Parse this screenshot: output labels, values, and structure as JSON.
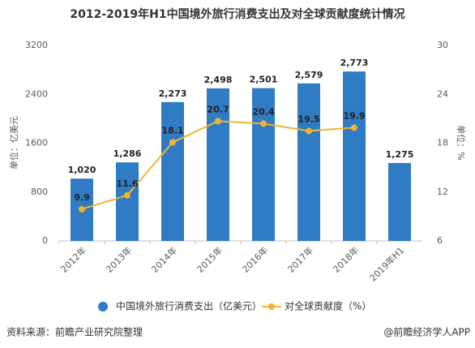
{
  "chart_data": {
    "type": "bar",
    "title": "2012-2019年H1中国境外旅行消费支出及对全球贡献度统计情况",
    "categories": [
      "2012年",
      "2013年",
      "2014年",
      "2015年",
      "2016年",
      "2017年",
      "2018年",
      "2019年H1"
    ],
    "series": [
      {
        "name": "中国境外旅行消费支出（亿美元）",
        "type": "bar",
        "color": "#2f7bc4",
        "values": [
          1020,
          1286,
          2273,
          2498,
          2501,
          2579,
          2773,
          1275
        ],
        "value_labels": [
          "1,020",
          "1,286",
          "2,273",
          "2,498",
          "2,501",
          "2,579",
          "2,773",
          "1,275"
        ]
      },
      {
        "name": "对全球贡献度（%）",
        "type": "line",
        "axis": "y2",
        "color": "#f0b432",
        "values": [
          9.9,
          11.6,
          18.1,
          20.7,
          20.4,
          19.5,
          19.9,
          null
        ]
      }
    ],
    "ylabel": "单位：亿美元",
    "y2label": "单位：%",
    "ylim": [
      0,
      3200
    ],
    "yticks": [
      0,
      800,
      1600,
      2400,
      3200
    ],
    "y2lim": [
      6,
      30
    ],
    "y2ticks": [
      6,
      12,
      18,
      24,
      30
    ],
    "grid": false
  },
  "footer": {
    "source": "资料来源：前瞻产业研究院整理",
    "credit": "@前瞻经济学人APP"
  }
}
